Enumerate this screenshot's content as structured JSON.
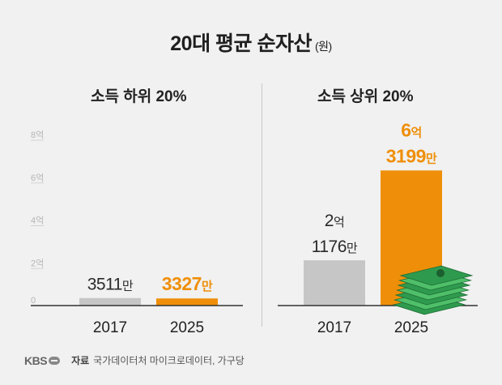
{
  "title": "20대 평균 순자산",
  "unit": "(원)",
  "source_label": "자료",
  "source_text": "국가데이터처 마이크로데이터, 가구당",
  "logo_text": "KBS",
  "colors": {
    "gray_bar": "#c6c6c6",
    "orange_bar": "#ef8f09",
    "axis": "#333333",
    "tick_text": "#b5b5b5",
    "money_green": "#3aa55a"
  },
  "chart_data": [
    {
      "type": "bar",
      "title": "소득 하위 20%",
      "categories": [
        "2017",
        "2025"
      ],
      "values": [
        35110000,
        33270000
      ],
      "value_labels": [
        [
          "3511만"
        ],
        [
          "3327만"
        ]
      ],
      "ylim": [
        0,
        800000000
      ],
      "y_ticks": [
        "0",
        "2억",
        "4억",
        "6억",
        "8억"
      ],
      "bar_colors": [
        "gray",
        "orange"
      ]
    },
    {
      "type": "bar",
      "title": "소득 상위 20%",
      "categories": [
        "2017",
        "2025"
      ],
      "values": [
        211760000,
        631990000
      ],
      "value_labels": [
        [
          "2억",
          "1176만"
        ],
        [
          "6억",
          "3199만"
        ]
      ],
      "ylim": [
        0,
        800000000
      ],
      "bar_colors": [
        "gray",
        "orange"
      ]
    }
  ]
}
